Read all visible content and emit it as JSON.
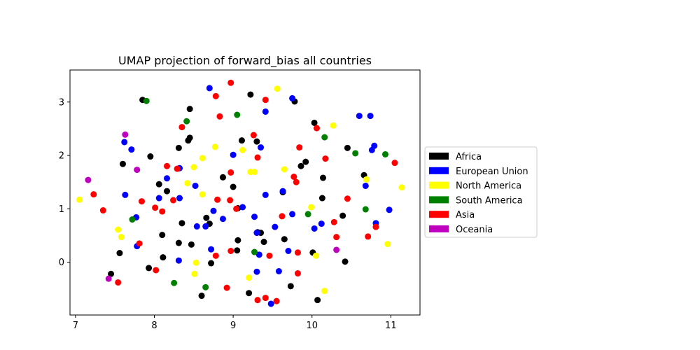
{
  "chart_data": {
    "type": "scatter",
    "title": "UMAP projection of forward_bias all countries",
    "xlabel": "",
    "ylabel": "",
    "xlim": [
      6.93,
      11.37
    ],
    "ylim": [
      -0.99,
      3.6
    ],
    "xticks": [
      7,
      8,
      9,
      10,
      11
    ],
    "yticks": [
      0,
      1,
      2,
      3
    ],
    "grid": false,
    "legend_position": "center-right",
    "series": [
      {
        "name": "Africa",
        "color": "#000000",
        "points": [
          [
            7.85,
            3.04
          ],
          [
            9.22,
            3.14
          ],
          [
            9.78,
            3.01
          ],
          [
            8.45,
            2.87
          ],
          [
            10.03,
            2.61
          ],
          [
            8.43,
            2.28
          ],
          [
            8.45,
            2.33
          ],
          [
            9.11,
            2.28
          ],
          [
            9.3,
            2.26
          ],
          [
            8.31,
            2.14
          ],
          [
            10.45,
            2.14
          ],
          [
            7.95,
            1.98
          ],
          [
            7.6,
            1.84
          ],
          [
            9.92,
            1.88
          ],
          [
            9.86,
            1.8
          ],
          [
            8.87,
            1.59
          ],
          [
            10.14,
            1.58
          ],
          [
            10.66,
            1.63
          ],
          [
            8.06,
            1.46
          ],
          [
            9.0,
            1.41
          ],
          [
            8.16,
            1.33
          ],
          [
            9.63,
            1.31
          ],
          [
            10.13,
            1.2
          ],
          [
            9.06,
            1.01
          ],
          [
            8.66,
            0.83
          ],
          [
            10.39,
            0.87
          ],
          [
            8.35,
            0.73
          ],
          [
            8.7,
            0.72
          ],
          [
            8.1,
            0.51
          ],
          [
            9.31,
            0.56
          ],
          [
            9.35,
            0.55
          ],
          [
            9.06,
            0.41
          ],
          [
            9.65,
            0.43
          ],
          [
            8.31,
            0.36
          ],
          [
            8.47,
            0.33
          ],
          [
            9.39,
            0.38
          ],
          [
            7.56,
            0.17
          ],
          [
            9.05,
            0.22
          ],
          [
            10.01,
            0.18
          ],
          [
            8.11,
            0.09
          ],
          [
            8.72,
            -0.02
          ],
          [
            10.42,
            0.01
          ],
          [
            7.93,
            -0.11
          ],
          [
            7.45,
            -0.22
          ],
          [
            9.73,
            -0.45
          ],
          [
            8.6,
            -0.63
          ],
          [
            9.2,
            -0.58
          ],
          [
            10.07,
            -0.71
          ]
        ]
      },
      {
        "name": "European Union",
        "color": "#0000ff",
        "points": [
          [
            8.7,
            3.26
          ],
          [
            9.75,
            3.07
          ],
          [
            9.41,
            2.82
          ],
          [
            10.6,
            2.74
          ],
          [
            10.74,
            2.74
          ],
          [
            7.62,
            2.25
          ],
          [
            7.71,
            2.11
          ],
          [
            9.35,
            2.15
          ],
          [
            10.79,
            2.18
          ],
          [
            10.76,
            2.1
          ],
          [
            9.0,
            2.01
          ],
          [
            8.32,
            1.76
          ],
          [
            8.16,
            1.57
          ],
          [
            7.63,
            1.26
          ],
          [
            8.52,
            1.43
          ],
          [
            9.41,
            1.26
          ],
          [
            10.68,
            1.43
          ],
          [
            9.63,
            1.33
          ],
          [
            8.06,
            1.2
          ],
          [
            8.32,
            1.2
          ],
          [
            9.12,
            1.03
          ],
          [
            8.75,
            0.96
          ],
          [
            7.77,
            0.84
          ],
          [
            8.87,
            0.81
          ],
          [
            9.27,
            0.85
          ],
          [
            9.75,
            0.9
          ],
          [
            10.98,
            0.98
          ],
          [
            8.54,
            0.67
          ],
          [
            8.65,
            0.67
          ],
          [
            9.53,
            0.66
          ],
          [
            10.12,
            0.72
          ],
          [
            10.03,
            0.63
          ],
          [
            10.81,
            0.73
          ],
          [
            7.78,
            0.3
          ],
          [
            9.3,
            0.55
          ],
          [
            8.72,
            0.24
          ],
          [
            9.33,
            0.14
          ],
          [
            9.7,
            0.21
          ],
          [
            8.31,
            0.03
          ],
          [
            9.3,
            -0.18
          ],
          [
            9.58,
            -0.17
          ],
          [
            9.48,
            -0.78
          ]
        ]
      },
      {
        "name": "North America",
        "color": "#ffff00",
        "points": [
          [
            9.56,
            3.25
          ],
          [
            10.27,
            2.56
          ],
          [
            8.77,
            2.16
          ],
          [
            9.12,
            2.1
          ],
          [
            8.61,
            1.95
          ],
          [
            8.5,
            1.78
          ],
          [
            9.65,
            1.74
          ],
          [
            9.22,
            1.69
          ],
          [
            9.27,
            1.69
          ],
          [
            10.69,
            1.55
          ],
          [
            8.42,
            1.48
          ],
          [
            8.61,
            1.27
          ],
          [
            11.14,
            1.4
          ],
          [
            7.05,
            1.17
          ],
          [
            9.99,
            1.03
          ],
          [
            7.54,
            0.61
          ],
          [
            7.58,
            0.47
          ],
          [
            10.96,
            0.34
          ],
          [
            10.05,
            0.12
          ],
          [
            8.53,
            -0.01
          ],
          [
            8.51,
            -0.22
          ],
          [
            9.2,
            -0.29
          ],
          [
            10.16,
            -0.54
          ]
        ]
      },
      {
        "name": "South America",
        "color": "#008000",
        "points": [
          [
            7.9,
            3.02
          ],
          [
            9.05,
            2.76
          ],
          [
            8.41,
            2.64
          ],
          [
            10.16,
            2.34
          ],
          [
            10.55,
            2.04
          ],
          [
            10.93,
            2.02
          ],
          [
            10.68,
            0.99
          ],
          [
            7.72,
            0.8
          ],
          [
            9.95,
            0.9
          ],
          [
            9.27,
            0.19
          ],
          [
            8.25,
            -0.39
          ],
          [
            8.65,
            -0.47
          ]
        ]
      },
      {
        "name": "Asia",
        "color": "#ff0000",
        "points": [
          [
            8.97,
            3.36
          ],
          [
            8.78,
            3.11
          ],
          [
            9.41,
            3.04
          ],
          [
            8.83,
            2.73
          ],
          [
            8.35,
            2.53
          ],
          [
            10.06,
            2.51
          ],
          [
            9.26,
            2.38
          ],
          [
            9.84,
            2.15
          ],
          [
            9.31,
            1.96
          ],
          [
            10.17,
            1.94
          ],
          [
            8.16,
            1.8
          ],
          [
            8.29,
            1.75
          ],
          [
            8.97,
            1.68
          ],
          [
            11.05,
            1.86
          ],
          [
            7.23,
            1.27
          ],
          [
            9.77,
            1.6
          ],
          [
            9.8,
            1.5
          ],
          [
            8.24,
            1.16
          ],
          [
            8.8,
            1.17
          ],
          [
            8.96,
            1.16
          ],
          [
            10.45,
            1.19
          ],
          [
            7.84,
            1.14
          ],
          [
            8.01,
            1.02
          ],
          [
            8.1,
            0.95
          ],
          [
            7.35,
            0.97
          ],
          [
            9.04,
            1.0
          ],
          [
            9.62,
            0.86
          ],
          [
            10.28,
            0.75
          ],
          [
            10.81,
            0.66
          ],
          [
            10.31,
            0.47
          ],
          [
            10.71,
            0.48
          ],
          [
            7.81,
            0.35
          ],
          [
            8.97,
            0.21
          ],
          [
            9.82,
            0.18
          ],
          [
            8.78,
            0.12
          ],
          [
            9.46,
            0.12
          ],
          [
            8.02,
            -0.15
          ],
          [
            9.82,
            -0.21
          ],
          [
            7.54,
            -0.38
          ],
          [
            8.92,
            -0.48
          ],
          [
            9.31,
            -0.71
          ],
          [
            9.41,
            -0.67
          ],
          [
            9.55,
            -0.73
          ]
        ]
      },
      {
        "name": "Oceania",
        "color": "#bf00bf",
        "points": [
          [
            7.63,
            2.39
          ],
          [
            7.78,
            1.73
          ],
          [
            7.16,
            1.54
          ],
          [
            10.31,
            0.23
          ],
          [
            7.42,
            -0.31
          ]
        ]
      }
    ]
  }
}
